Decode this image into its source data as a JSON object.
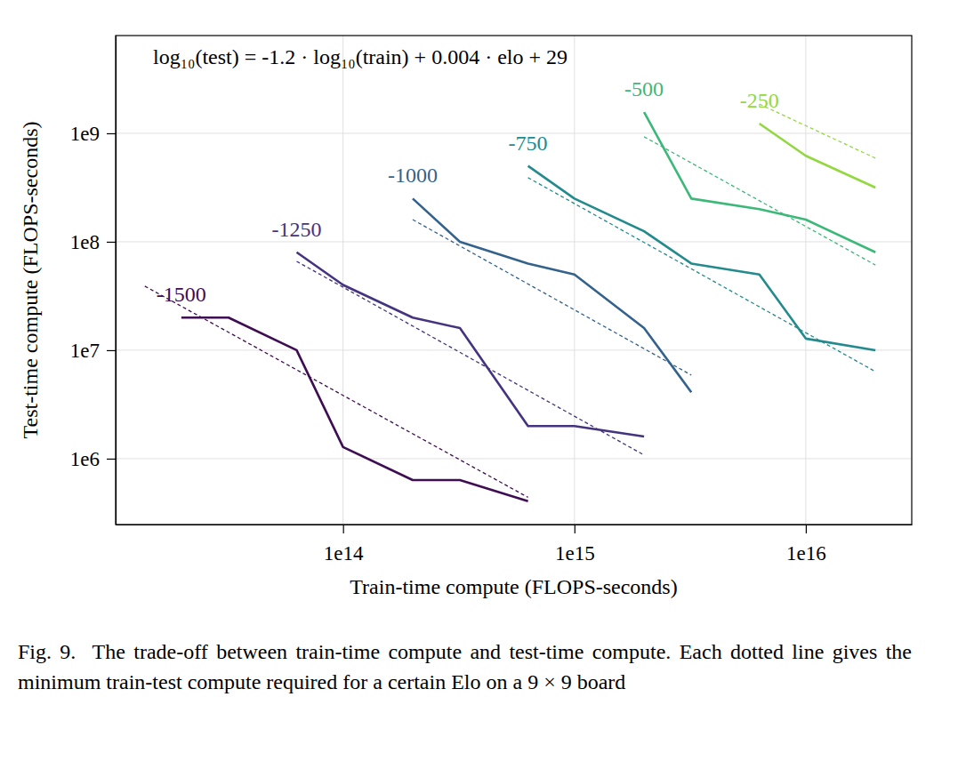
{
  "chart_data": {
    "type": "line",
    "log": true,
    "grid": true,
    "xlabel": "Train-time compute (FLOPS-seconds)",
    "ylabel": "Test-time compute (FLOPS-seconds)",
    "annotations": [
      "log₁₀(test) = -1.2 · log₁₀(train) + 0.004 · elo + 29"
    ],
    "caption": "Fig. 9.  The trade-off between train-time compute and test-time compute. Each dotted line gives the minimum train-test compute required for a certain Elo on a 9 × 9 board",
    "xlim": [
      10400000000000.0,
      2.87e+16
    ],
    "ylim": [
      247000,
      7970000000
    ],
    "xticks": [
      {
        "value": 100000000000000,
        "label": "1e14"
      },
      {
        "value": 1000000000000000,
        "label": "1e15"
      },
      {
        "value": 10000000000000000,
        "label": "1e16"
      }
    ],
    "yticks": [
      {
        "value": 1000000,
        "label": "1e6"
      },
      {
        "value": 10000000,
        "label": "1e7"
      },
      {
        "value": 100000000,
        "label": "1e8"
      },
      {
        "value": 1000000000,
        "label": "1e9"
      }
    ],
    "series": [
      {
        "name": "-1500",
        "color": "#3e0d52",
        "line_style": "solid",
        "x": [
          20000000000000.0,
          32000000000000.0,
          63000000000000.0,
          100000000000000.0,
          200000000000000.0,
          320000000000000.0,
          630000000000000.0
        ],
        "values": [
          20000000.0,
          20000000.0,
          10000000.0,
          1280000.0,
          635000.0,
          635000.0,
          405000.0
        ]
      },
      {
        "color": "#3e0d52",
        "line_style": "dashed",
        "x": [
          13900000000000.0,
          630000000000000.0
        ],
        "values": [
          39000000.0,
          440000.0
        ]
      },
      {
        "name": "-1250",
        "color": "#46337f",
        "line_style": "solid",
        "x": [
          63000000000000.0,
          100000000000000.0,
          200000000000000.0,
          320000000000000.0,
          630000000000000.0,
          1000000000000000.0,
          2000000000000000.0
        ],
        "values": [
          80000000.0,
          40000000.0,
          20000000.0,
          16000000.0,
          2000000.0,
          2000000.0,
          1600000.0
        ]
      },
      {
        "color": "#46337f",
        "line_style": "dashed",
        "x": [
          63000000000000.0,
          2000000000000000.0
        ],
        "values": [
          66000000.0,
          1080000.0
        ]
      },
      {
        "name": "-1000",
        "color": "#33628d",
        "line_style": "solid",
        "x": [
          200000000000000.0,
          320000000000000.0,
          630000000000000.0,
          1000000000000000.0,
          2000000000000000.0,
          3200000000000000.0
        ],
        "values": [
          250000000.0,
          100000000.0,
          63000000.0,
          50000000.0,
          16000000.0,
          4100000.0
        ]
      },
      {
        "color": "#33628d",
        "line_style": "dashed",
        "x": [
          200000000000000.0,
          3200000000000000.0
        ],
        "values": [
          160000000.0,
          5900000.0
        ]
      },
      {
        "name": "-750",
        "color": "#238a8d",
        "line_style": "solid",
        "x": [
          630000000000000.0,
          1000000000000000.0,
          2000000000000000.0,
          3200000000000000.0,
          6300000000000000.0,
          1e+16,
          2e+16
        ],
        "values": [
          500000000.0,
          250000000.0,
          125000000.0,
          63000000.0,
          50000000.0,
          12800000.0,
          10000000.0
        ]
      },
      {
        "color": "#238a8d",
        "line_style": "dashed",
        "x": [
          630000000000000.0,
          2e+16
        ],
        "values": [
          390000000.0,
          6350000.0
        ]
      },
      {
        "name": "-500",
        "color": "#3cb878",
        "line_style": "solid",
        "x": [
          2000000000000000.0,
          3200000000000000.0,
          6300000000000000.0,
          1e+16,
          2e+16
        ],
        "values": [
          1570000000.0,
          250000000.0,
          200000000.0,
          160000000.0,
          80000000.0
        ]
      },
      {
        "color": "#3cb878",
        "line_style": "dashed",
        "x": [
          2000000000000000.0,
          2e+16
        ],
        "values": [
          930000000.0,
          61000000.0
        ]
      },
      {
        "name": "-250",
        "color": "#93d741",
        "line_style": "solid",
        "x": [
          6300000000000000.0,
          1e+16,
          2e+16
        ],
        "values": [
          1230000000.0,
          620000000.0,
          316000000.0
        ]
      },
      {
        "color": "#93d741",
        "line_style": "dashed",
        "x": [
          6300000000000000.0,
          2e+16
        ],
        "values": [
          1860000000.0,
          590000000.0
        ]
      }
    ]
  }
}
